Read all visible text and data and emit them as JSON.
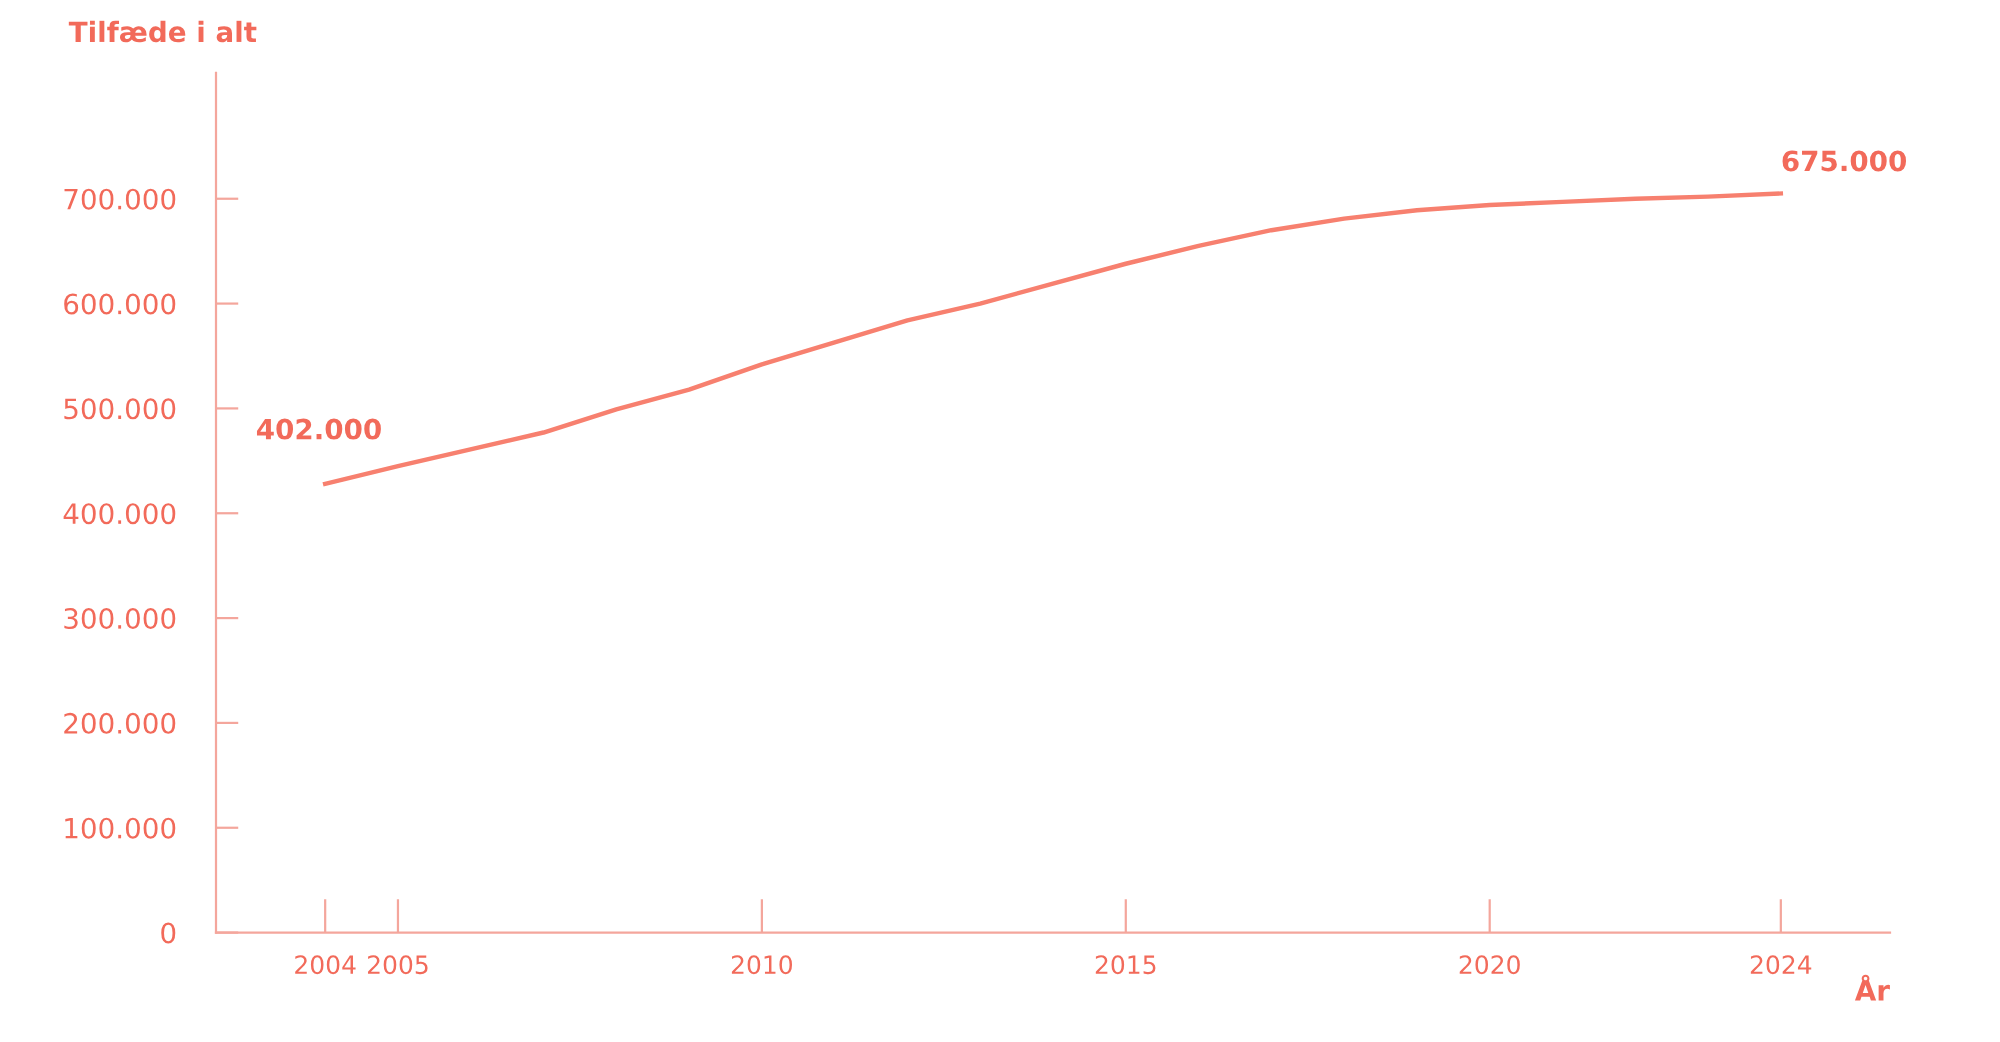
{
  "chart_data": {
    "type": "line",
    "xlabel": "År",
    "ylabel": "Tilfæde i alt",
    "x": [
      2004,
      2005,
      2007,
      2008,
      2009,
      2010,
      2011,
      2012,
      2013,
      2014,
      2015,
      2016,
      2017,
      2018,
      2019,
      2020,
      2021,
      2022,
      2023,
      2024
    ],
    "series": [
      {
        "color": "#f7806f",
        "values": [
          428000,
          445000,
          477000,
          499000,
          518000,
          542000,
          563000,
          584000,
          600000,
          619000,
          638000,
          655000,
          670000,
          681000,
          689000,
          694000,
          697000,
          700000,
          702000,
          705000
        ]
      }
    ],
    "xlim": [
      2002.5,
      2025.5
    ],
    "xticks": [
      2004,
      2005,
      2010,
      2015,
      2020,
      2024
    ],
    "ylim": [
      0,
      820000
    ],
    "yticks": [
      0,
      {
        "value": 100000,
        "label": "100.000"
      },
      {
        "value": 200000,
        "label": "200.000"
      },
      {
        "value": 300000,
        "label": "300.000"
      },
      {
        "value": 400000,
        "label": "400.000"
      },
      {
        "value": 500000,
        "label": "500.000"
      },
      {
        "value": 600000,
        "label": "600.000"
      },
      {
        "value": 700000,
        "label": "700.000"
      }
    ],
    "annotations": [
      "402.000",
      "675.000"
    ],
    "grid": false,
    "legend": false,
    "marker": "none",
    "line_style": "solid"
  }
}
